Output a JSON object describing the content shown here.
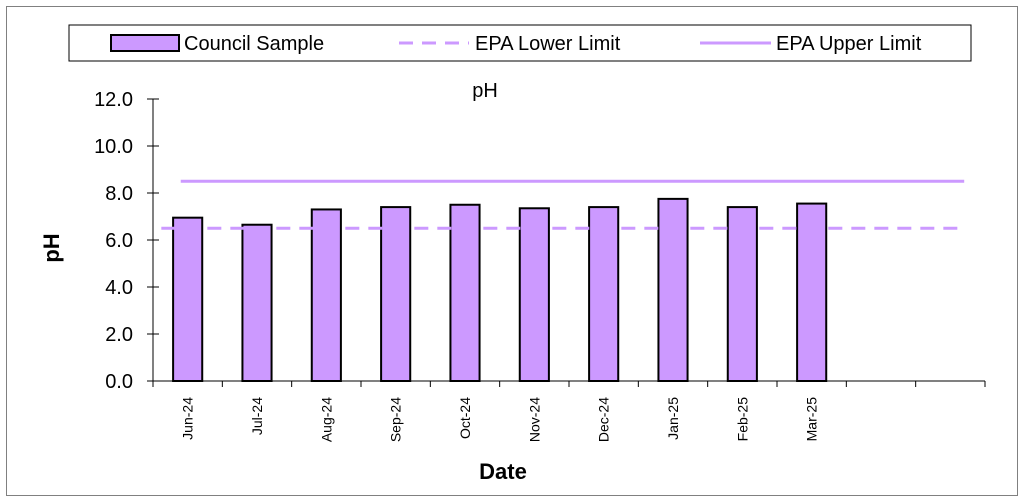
{
  "chart_data": {
    "type": "bar",
    "title": "pH",
    "xlabel": "Date",
    "ylabel": "pH",
    "ylim": [
      0,
      12
    ],
    "yticks": [
      "0.0",
      "2.0",
      "4.0",
      "6.0",
      "8.0",
      "10.0",
      "12.0"
    ],
    "categories": [
      "Jun-24",
      "Jul-24",
      "Aug-24",
      "Sep-24",
      "Oct-24",
      "Nov-24",
      "Dec-24",
      "Jan-25",
      "Feb-25",
      "Mar-25",
      "",
      ""
    ],
    "series": [
      {
        "name": "Council Sample",
        "kind": "bar",
        "color": "#cc99ff",
        "values": [
          6.95,
          6.65,
          7.3,
          7.4,
          7.5,
          7.35,
          7.4,
          7.75,
          7.4,
          7.55,
          null,
          null
        ]
      },
      {
        "name": "EPA Lower Limit",
        "kind": "line",
        "style": "dashed",
        "color": "#cc99ff",
        "value": 6.5
      },
      {
        "name": "EPA Upper Limit",
        "kind": "line",
        "style": "solid",
        "color": "#cc99ff",
        "value": 8.5
      }
    ],
    "grid": false,
    "legend_position": "top"
  }
}
